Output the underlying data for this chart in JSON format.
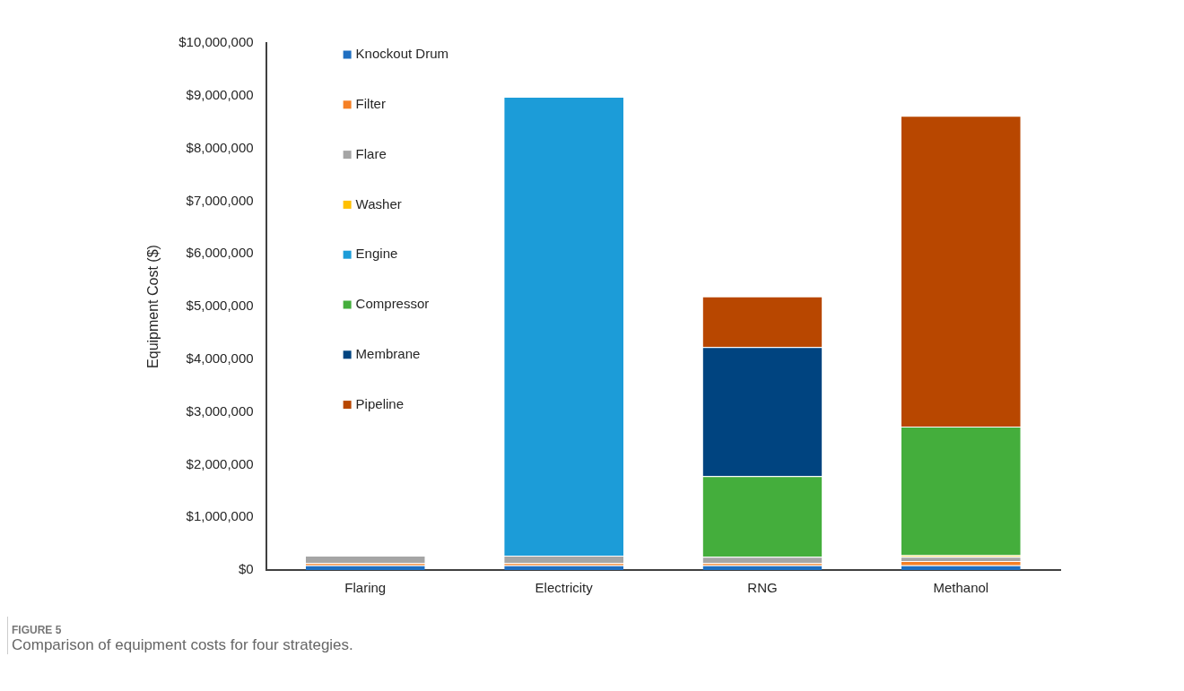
{
  "chart_data": {
    "type": "bar",
    "stacked": true,
    "ylabel": "Equipment Cost ($)",
    "categories": [
      "Flaring",
      "Electricity",
      "RNG",
      "Methanol"
    ],
    "series": [
      {
        "name": "Knockout Drum",
        "color": "#1f6fc1",
        "values": [
          90000,
          90000,
          90000,
          90000
        ]
      },
      {
        "name": "Filter",
        "color": "#f58025",
        "values": [
          40000,
          40000,
          40000,
          80000
        ]
      },
      {
        "name": "Flare",
        "color": "#a5a5a5",
        "values": [
          140000,
          140000,
          120000,
          80000
        ]
      },
      {
        "name": "Washer",
        "color": "#ffc000",
        "values": [
          null,
          null,
          null,
          30000
        ]
      },
      {
        "name": "Engine",
        "color": "#1c9cd8",
        "values": [
          null,
          8710000,
          null,
          null
        ]
      },
      {
        "name": "Compressor",
        "color": "#44ae3c",
        "values": [
          null,
          null,
          1530000,
          2440000
        ]
      },
      {
        "name": "Membrane",
        "color": "#004480",
        "values": [
          null,
          null,
          2450000,
          null
        ]
      },
      {
        "name": "Pipeline",
        "color": "#b84700",
        "values": [
          null,
          null,
          960000,
          5900000
        ]
      }
    ],
    "ylim": [
      0,
      10000000
    ],
    "yticks": [
      {
        "value": 0,
        "label": "$0"
      },
      {
        "value": 1000000,
        "label": "$1,000,000"
      },
      {
        "value": 2000000,
        "label": "$2,000,000"
      },
      {
        "value": 3000000,
        "label": "$3,000,000"
      },
      {
        "value": 4000000,
        "label": "$4,000,000"
      },
      {
        "value": 5000000,
        "label": "$5,000,000"
      },
      {
        "value": 6000000,
        "label": "$6,000,000"
      },
      {
        "value": 7000000,
        "label": "$7,000,000"
      },
      {
        "value": 8000000,
        "label": "$8,000,000"
      },
      {
        "value": 9000000,
        "label": "$9,000,000"
      },
      {
        "value": 10000000,
        "label": "$10,000,000"
      }
    ],
    "grid": false,
    "legend": "top left",
    "annotations": [
      "FIGURE 5",
      "Comparison of equipment costs for four strategies."
    ]
  }
}
